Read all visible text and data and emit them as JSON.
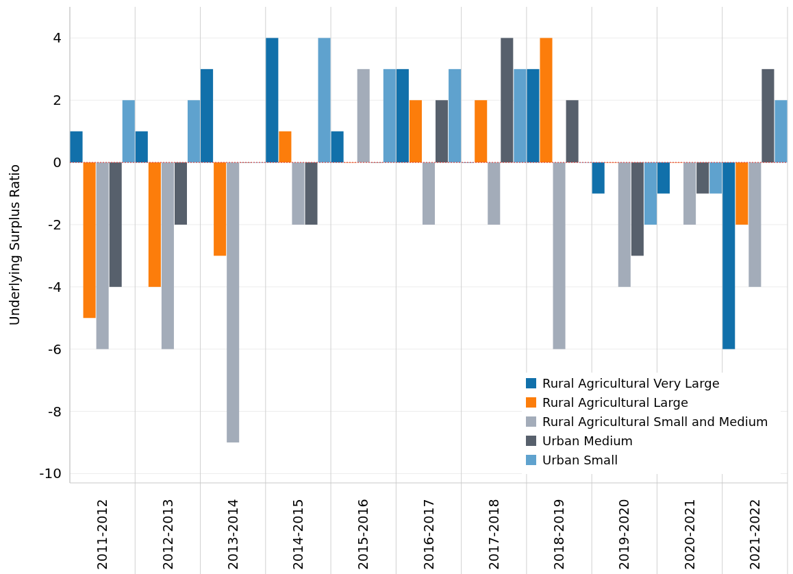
{
  "chart_data": {
    "type": "bar",
    "ylabel": "Underlying Surplus Ratio",
    "categories": [
      "2011-2012",
      "2012-2013",
      "2013-2014",
      "2014-2015",
      "2015-2016",
      "2016-2017",
      "2017-2018",
      "2018-2019",
      "2019-2020",
      "2020-2021",
      "2021-2022"
    ],
    "series": [
      {
        "name": "Rural Agricultural Very Large",
        "color": "#1170aa",
        "values": [
          1,
          1,
          3,
          4,
          1,
          3,
          0,
          3,
          -1,
          -1,
          -6
        ]
      },
      {
        "name": "Rural Agricultural Large",
        "color": "#fc7d0b",
        "values": [
          -5,
          -4,
          -3,
          1,
          0,
          2,
          2,
          4,
          0,
          0,
          -2
        ]
      },
      {
        "name": "Rural Agricultural Small and Medium",
        "color": "#a3acb9",
        "values": [
          -6,
          -6,
          -9,
          -2,
          3,
          -2,
          -2,
          -6,
          -4,
          -2,
          -4
        ]
      },
      {
        "name": "Urban Medium",
        "color": "#57606c",
        "values": [
          -4,
          -2,
          0,
          -2,
          0,
          2,
          4,
          2,
          -3,
          -1,
          3
        ]
      },
      {
        "name": "Urban Small",
        "color": "#5fa2ce",
        "values": [
          2,
          2,
          0,
          4,
          3,
          3,
          3,
          0,
          -2,
          -1,
          2
        ]
      }
    ],
    "ylim": [
      -10.3,
      5
    ],
    "yticks": [
      -10,
      -8,
      -6,
      -4,
      -2,
      0,
      2,
      4
    ],
    "grid": true,
    "legend": "bottom right",
    "ref_lines": [
      {
        "axis": "y",
        "value": 0,
        "color": "#e03030",
        "line_style": "dotted"
      }
    ]
  }
}
